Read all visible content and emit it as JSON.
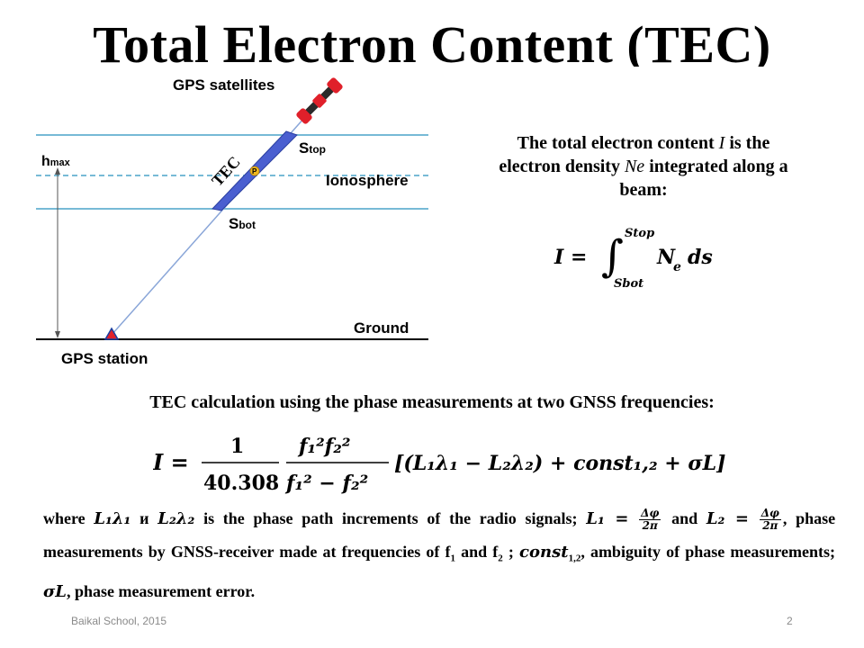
{
  "slide": {
    "title": "Total Electron Content (TEC)",
    "footer_left": "Baikal School, 2015",
    "page_number": "2"
  },
  "diagram": {
    "satellite_label": "GPS satellites",
    "station_label": "GPS station",
    "ionosphere_label": "Ionosphere",
    "ground_label": "Ground",
    "hmax_label": "hmax",
    "tec_label": "TEC",
    "p_label": "P",
    "stop_label": "Stop",
    "sbot_label": "Sbot",
    "colors": {
      "layer_line": "#4aa3c8",
      "beam": "#8aa6d8",
      "segment_fill": "#4a5fd0",
      "satellite": "#e0202a",
      "point": "#f0b820"
    }
  },
  "intro": {
    "line1_pre": "The total electron content ",
    "line1_var": "I",
    "line1_post": " is the",
    "line2_pre": "electron density ",
    "line2_var": "Ne",
    "line2_post": " integrated along a",
    "line3": "beam:"
  },
  "formula1": {
    "lhs": "I =",
    "upper": "Stop",
    "lower": "Sbot",
    "integrand": "N",
    "subscript": "e",
    "differential": "ds"
  },
  "calc_heading": "TEC calculation using the phase measurements at two GNSS frequencies:",
  "formula2": {
    "lhs": "I =",
    "num1": "1",
    "den1": "40.308",
    "num2": "f₁²f₂²",
    "den2": "f₁² − f₂²",
    "bracket": "[(L₁λ₁ − L₂λ₂) + const₁,₂ + σL]"
  },
  "explanation": {
    "where": "where",
    "L1l1": "L₁λ₁",
    "and_ru": "и",
    "L2l2": "L₂λ₂",
    "t1": "is the phase path increments of the radio signals;",
    "L1eq": "L₁ =",
    "frac_num": "Δφ",
    "frac_den": "2π",
    "and": "and",
    "L2eq": "L₂ =",
    "t2": ", phase measurements by GNSS-receiver made at frequencies of f",
    "f1sub": "1",
    "and2": " and f",
    "f2sub": "2",
    "semicolon": " ;",
    "const": "const",
    "const_sub": "1,2",
    "t3": ", ambiguity of phase measurements;",
    "sigma": "σL",
    "t4": ", phase measurement error."
  }
}
